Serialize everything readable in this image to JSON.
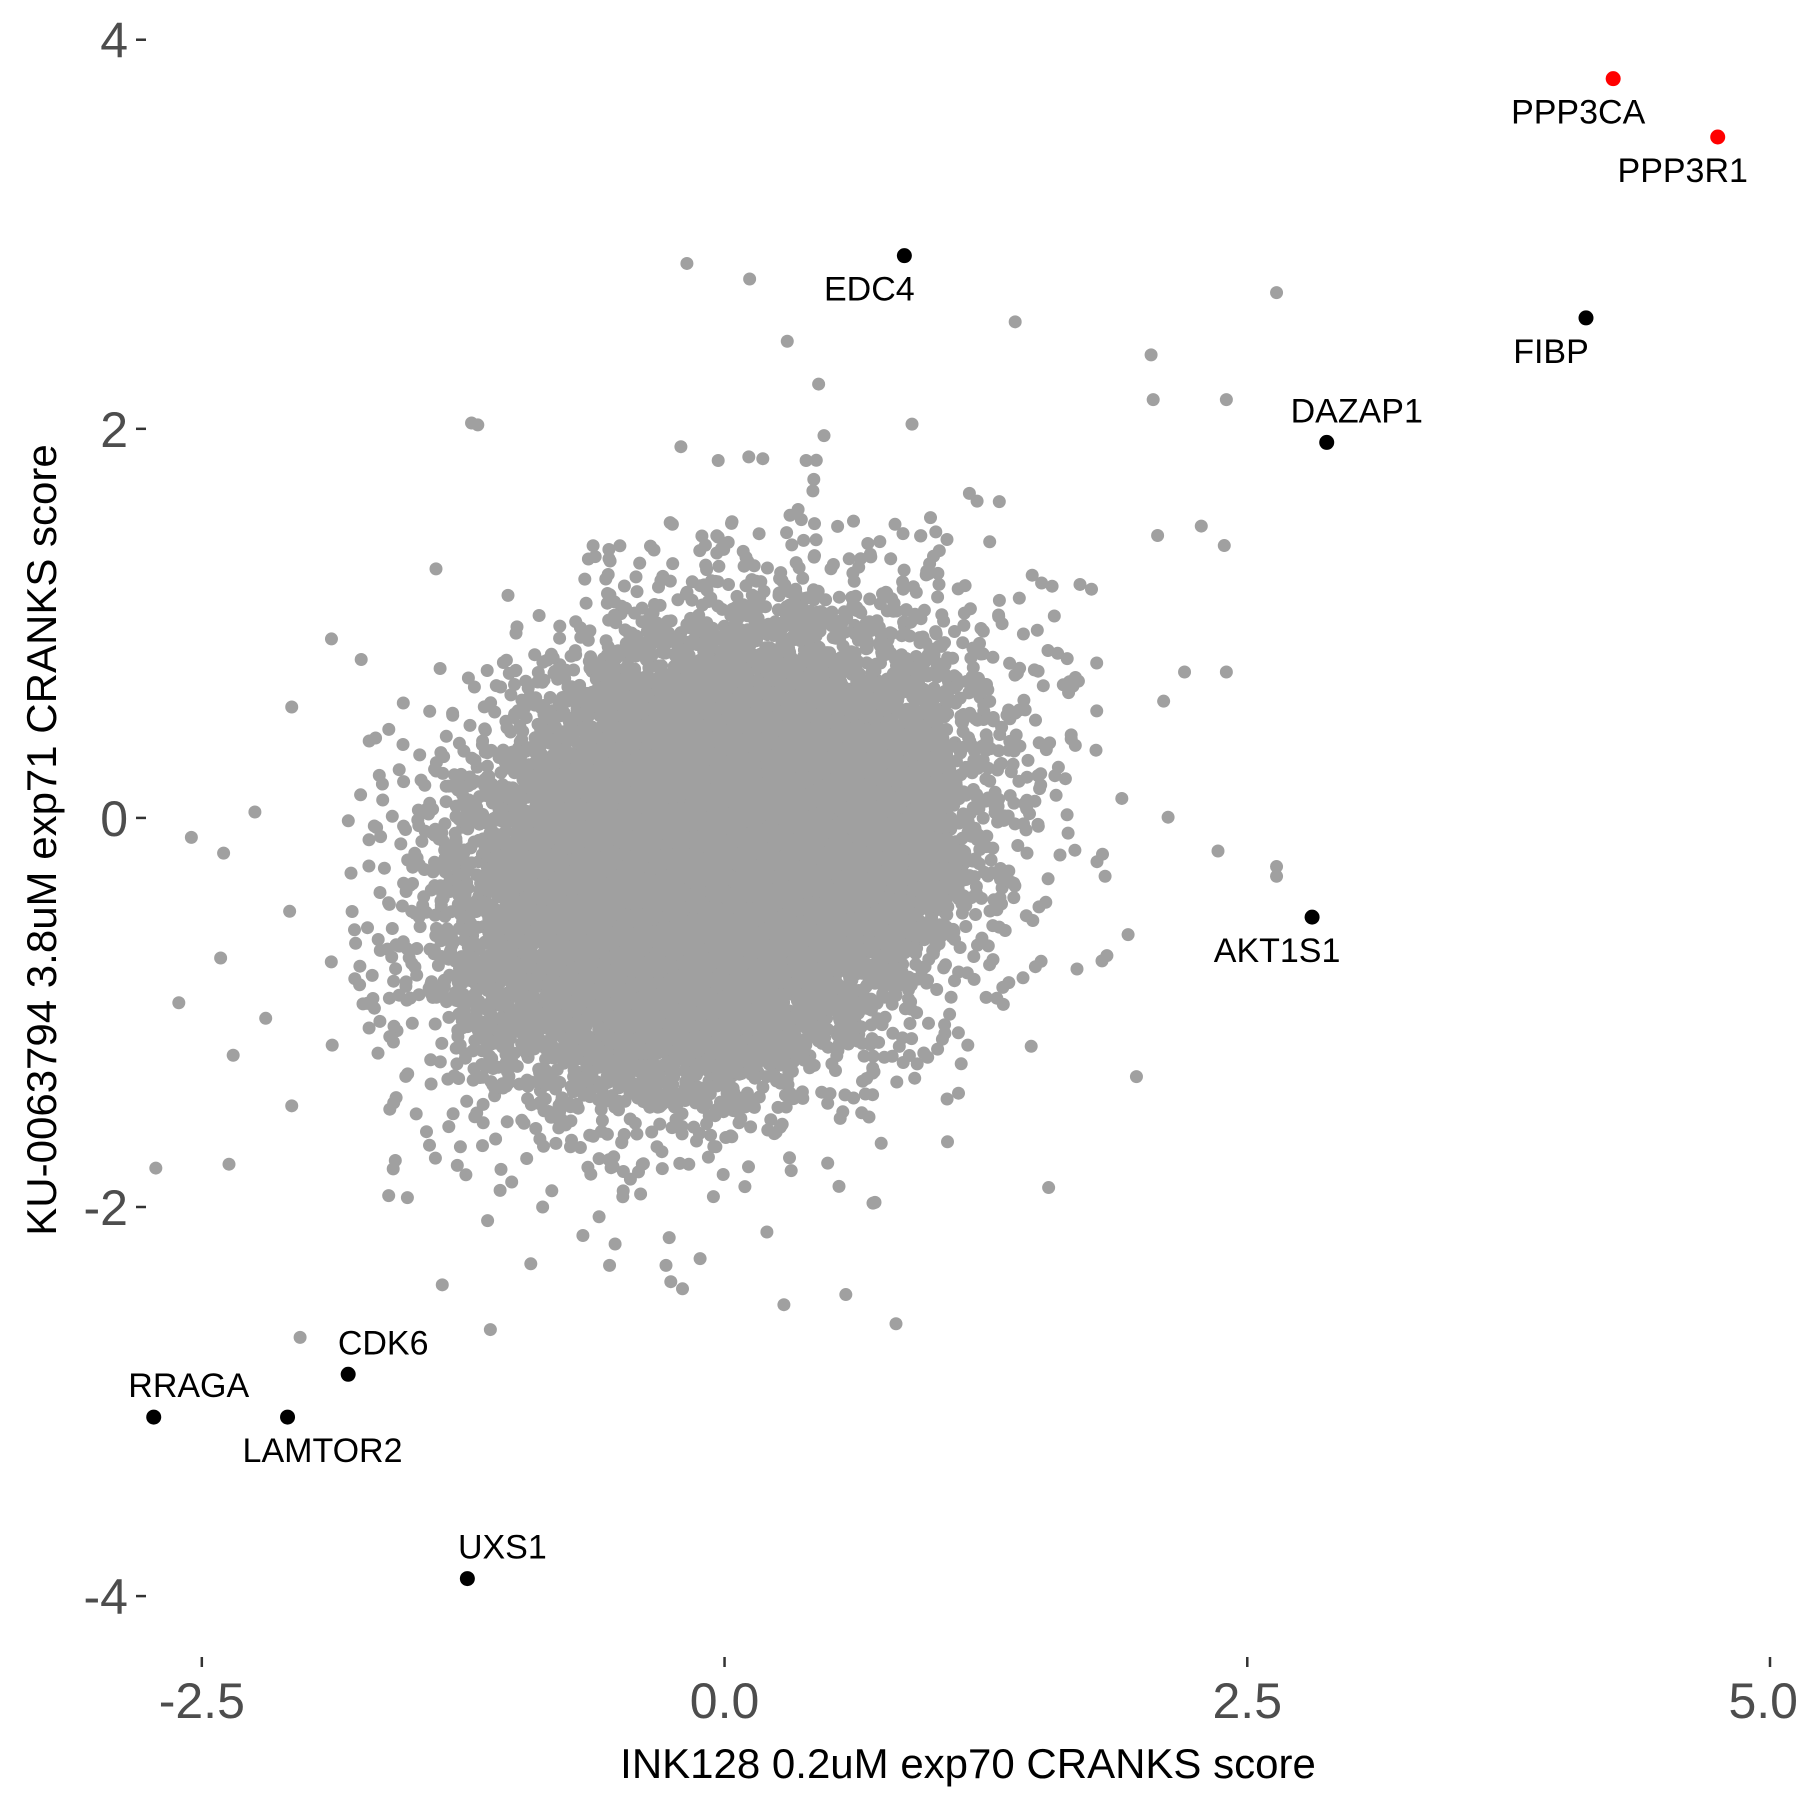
{
  "chart_data": {
    "type": "scatter",
    "title": "",
    "xlabel": "INK128 0.2uM exp70 CRANKS score",
    "ylabel": "KU-0063794 3.8uM exp71 CRANKS score",
    "xlim": [
      -2.7,
      5.0
    ],
    "ylim": [
      -4.2,
      4.05
    ],
    "x_ticks": [
      -2.5,
      0.0,
      2.5,
      5.0
    ],
    "x_tick_labels": [
      "-2.5",
      "0.0",
      "2.5",
      "5.0"
    ],
    "y_ticks": [
      4,
      2,
      0,
      -2,
      -4
    ],
    "y_tick_labels": [
      "4",
      "2",
      "0",
      "-2",
      "-4"
    ],
    "grid": false,
    "colors": {
      "background_points": "#a0a0a0",
      "highlight": "#000000",
      "top_hits": "#ff0000"
    },
    "background_cloud": {
      "description_points": "approx. 18000 grey points, bivariate cloud",
      "center": [
        -0.05,
        -0.2
      ],
      "sd_x": 0.55,
      "sd_y": 0.55,
      "correlation": 0.25
    },
    "background_outliers": [
      {
        "x": -2.55,
        "y": -0.1
      },
      {
        "x": -2.61,
        "y": -0.95
      },
      {
        "x": -2.41,
        "y": -0.72
      },
      {
        "x": -2.35,
        "y": -1.22
      },
      {
        "x": -2.72,
        "y": -1.8
      },
      {
        "x": -2.37,
        "y": -1.78
      },
      {
        "x": -2.07,
        "y": 0.57
      },
      {
        "x": -2.08,
        "y": -0.48
      },
      {
        "x": -2.07,
        "y": -1.48
      },
      {
        "x": -2.03,
        "y": -2.67
      },
      {
        "x": -1.88,
        "y": 0.92
      },
      {
        "x": -1.7,
        "y": -1.08
      },
      {
        "x": -1.21,
        "y": 2.03
      },
      {
        "x": -1.18,
        "y": 2.02
      },
      {
        "x": -1.38,
        "y": 1.28
      },
      {
        "x": -1.35,
        "y": -2.4
      },
      {
        "x": -1.12,
        "y": -2.63
      },
      {
        "x": -0.87,
        "y": -2.0
      },
      {
        "x": -0.6,
        "y": -2.05
      },
      {
        "x": -0.55,
        "y": -2.3
      },
      {
        "x": -0.28,
        "y": -2.3
      },
      {
        "x": -0.18,
        "y": 2.85
      },
      {
        "x": 0.12,
        "y": 2.77
      },
      {
        "x": 0.3,
        "y": 2.45
      },
      {
        "x": 0.58,
        "y": -2.45
      },
      {
        "x": 0.82,
        "y": -2.6
      },
      {
        "x": 0.71,
        "y": -1.98
      },
      {
        "x": 1.39,
        "y": 2.55
      },
      {
        "x": 1.55,
        "y": -1.9
      },
      {
        "x": 2.04,
        "y": 2.38
      },
      {
        "x": 2.05,
        "y": 2.15
      },
      {
        "x": 1.97,
        "y": -1.33
      },
      {
        "x": 2.36,
        "y": -0.17
      },
      {
        "x": 2.64,
        "y": -0.25
      },
      {
        "x": 2.64,
        "y": -0.3
      },
      {
        "x": 2.64,
        "y": 2.7
      },
      {
        "x": 2.4,
        "y": 2.15
      },
      {
        "x": 2.39,
        "y": 1.4
      },
      {
        "x": 2.4,
        "y": 0.75
      },
      {
        "x": 2.28,
        "y": 1.5
      },
      {
        "x": 2.2,
        "y": 0.75
      },
      {
        "x": 2.1,
        "y": 0.6
      },
      {
        "x": 1.93,
        "y": -0.6
      },
      {
        "x": 1.82,
        "y": -0.3
      },
      {
        "x": 1.78,
        "y": 0.55
      },
      {
        "x": 1.9,
        "y": 0.1
      },
      {
        "x": 1.7,
        "y": 1.2
      },
      {
        "x": 0.45,
        "y": 2.23
      }
    ],
    "highlighted_points": [
      {
        "label": "PPP3CA",
        "x": 4.25,
        "y": 3.8,
        "color": "#ff0000"
      },
      {
        "label": "PPP3R1",
        "x": 4.75,
        "y": 3.5,
        "color": "#ff0000"
      },
      {
        "label": "EDC4",
        "x": 0.86,
        "y": 2.89,
        "color": "#000000"
      },
      {
        "label": "FIBP",
        "x": 4.12,
        "y": 2.57,
        "color": "#000000"
      },
      {
        "label": "DAZAP1",
        "x": 2.88,
        "y": 1.93,
        "color": "#000000"
      },
      {
        "label": "AKT1S1",
        "x": 2.81,
        "y": -0.51,
        "color": "#000000"
      },
      {
        "label": "CDK6",
        "x": -1.8,
        "y": -2.86,
        "color": "#000000"
      },
      {
        "label": "RRAGA",
        "x": -2.73,
        "y": -3.08,
        "color": "#000000"
      },
      {
        "label": "LAMTOR2",
        "x": -2.09,
        "y": -3.08,
        "color": "#000000"
      },
      {
        "label": "UXS1",
        "x": -1.23,
        "y": -3.91,
        "color": "#000000"
      }
    ]
  }
}
